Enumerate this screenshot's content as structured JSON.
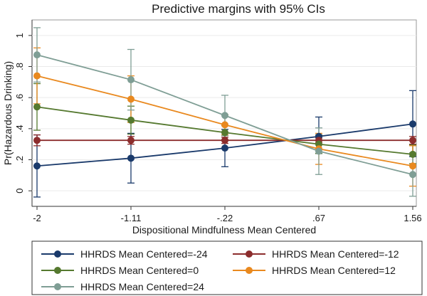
{
  "chart_data": {
    "type": "line",
    "title": "Predictive margins with 95% CIs",
    "xlabel": "Dispositional Mindfulness Mean Centered",
    "ylabel": "Pr(Hazardous Drinking)",
    "x": [
      -2,
      -1.11,
      -0.22,
      0.67,
      1.56
    ],
    "x_tick_labels": [
      "-2",
      "-1.11",
      "-.22",
      ".67",
      "1.56"
    ],
    "y_ticks": [
      0,
      0.2,
      0.4,
      0.6,
      0.8,
      1
    ],
    "y_tick_labels": [
      "0",
      ".2",
      ".4",
      ".6",
      ".8",
      "1"
    ],
    "ylim": [
      -0.1,
      1.1
    ],
    "xlim": [
      -2,
      1.56
    ],
    "grid": false,
    "legend_position": "bottom",
    "series": [
      {
        "name": "HHRDS Mean Centered=-24",
        "color": "#1a3a6b",
        "values": [
          0.16,
          0.21,
          0.275,
          0.35,
          0.43
        ],
        "ci_low": [
          -0.04,
          0.05,
          0.155,
          0.24,
          0.22
        ],
        "ci_high": [
          0.36,
          0.37,
          0.395,
          0.475,
          0.645
        ]
      },
      {
        "name": "HHRDS Mean Centered=-12",
        "color": "#8c2d2d",
        "values": [
          0.325,
          0.325,
          0.325,
          0.325,
          0.325
        ],
        "ci_low": [
          0.29,
          0.3,
          0.305,
          0.31,
          0.3
        ],
        "ci_high": [
          0.36,
          0.35,
          0.345,
          0.34,
          0.35
        ]
      },
      {
        "name": "HHRDS Mean Centered=0",
        "color": "#55792f",
        "values": [
          0.54,
          0.455,
          0.375,
          0.3,
          0.235
        ],
        "ci_low": [
          0.39,
          0.365,
          0.33,
          0.24,
          0.175
        ],
        "ci_high": [
          0.69,
          0.545,
          0.42,
          0.36,
          0.295
        ]
      },
      {
        "name": "HHRDS Mean Centered=12",
        "color": "#e9891f",
        "values": [
          0.74,
          0.59,
          0.425,
          0.27,
          0.16
        ],
        "ci_low": [
          0.56,
          0.44,
          0.36,
          0.17,
          0.03
        ],
        "ci_high": [
          0.92,
          0.74,
          0.49,
          0.37,
          0.29
        ]
      },
      {
        "name": "HHRDS Mean Centered=24",
        "color": "#7f9e95",
        "values": [
          0.875,
          0.715,
          0.485,
          0.255,
          0.105
        ],
        "ci_low": [
          0.7,
          0.52,
          0.355,
          0.105,
          -0.035
        ],
        "ci_high": [
          1.05,
          0.91,
          0.615,
          0.405,
          0.245
        ]
      }
    ]
  }
}
